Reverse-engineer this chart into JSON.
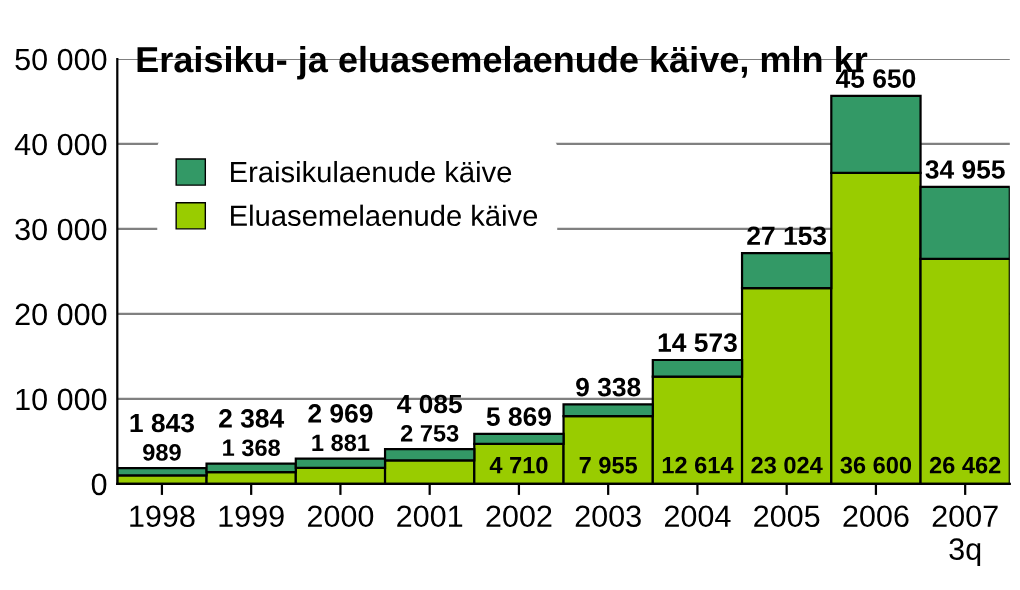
{
  "chart_data": {
    "type": "bar",
    "title": "Eraisiku- ja eluasemelaenude käive, mln kr",
    "stacked": true,
    "categories": [
      "1998",
      "1999",
      "2000",
      "2001",
      "2002",
      "2003",
      "2004",
      "2005",
      "2006",
      "2007\n3q"
    ],
    "series": [
      {
        "name": "Eluasemelaenude käive",
        "color": "#99cc00",
        "values": [
          989,
          1368,
          1881,
          2753,
          4710,
          7955,
          12614,
          23024,
          36600,
          26462
        ],
        "value_labels": [
          "989",
          "1 368",
          "1 881",
          "2 753",
          "4 710",
          "7 955",
          "12 614",
          "23 024",
          "36 600",
          "26 462"
        ]
      },
      {
        "name": "Eraisikulaenude käive",
        "color": "#339966",
        "values": [
          854,
          1016,
          1088,
          1332,
          1159,
          1383,
          1959,
          4129,
          9050,
          8493
        ]
      }
    ],
    "totals": [
      "1 843",
      "2 384",
      "2 969",
      "4 085",
      "5 869",
      "9 338",
      "14 573",
      "27 153",
      "45 650",
      "34 955"
    ],
    "ylim": [
      0,
      50000
    ],
    "yticks": [
      {
        "value": 0,
        "label": "0"
      },
      {
        "value": 10000,
        "label": "10 000"
      },
      {
        "value": 20000,
        "label": "20 000"
      },
      {
        "value": 30000,
        "label": "30 000"
      },
      {
        "value": 40000,
        "label": "40 000"
      },
      {
        "value": 50000,
        "label": "50 000"
      }
    ],
    "grid": "y",
    "legend": "top left"
  }
}
